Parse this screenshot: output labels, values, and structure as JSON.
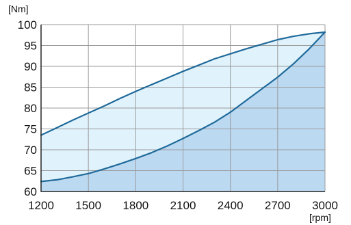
{
  "chart_data": {
    "type": "area",
    "xlabel": "[rpm]",
    "ylabel": "[Nm]",
    "xlim": [
      1200,
      3000
    ],
    "ylim": [
      60,
      100
    ],
    "x_ticks": [
      "1200",
      "1500",
      "1800",
      "2100",
      "2400",
      "2700",
      "3000"
    ],
    "y_ticks": [
      "60",
      "65",
      "70",
      "75",
      "80",
      "85",
      "90",
      "95",
      "100"
    ],
    "grid": true,
    "series": [
      {
        "x": [
          1200,
          1300,
          1400,
          1500,
          1600,
          1700,
          1800,
          1900,
          2000,
          2100,
          2200,
          2300,
          2400,
          2500,
          2600,
          2700,
          2800,
          2900,
          3000
        ],
        "y": [
          73.5,
          75.3,
          77.1,
          78.8,
          80.5,
          82.3,
          84.0,
          85.6,
          87.2,
          88.8,
          90.3,
          91.8,
          93.0,
          94.2,
          95.3,
          96.4,
          97.2,
          97.8,
          98.2
        ],
        "fill_color": "#e0f2fb",
        "line_color": "#1f6a9a"
      },
      {
        "x": [
          1200,
          1300,
          1400,
          1500,
          1600,
          1700,
          1800,
          1900,
          2000,
          2100,
          2200,
          2300,
          2400,
          2500,
          2600,
          2700,
          2800,
          2900,
          3000
        ],
        "y": [
          62.4,
          62.8,
          63.5,
          64.3,
          65.4,
          66.6,
          67.9,
          69.3,
          70.9,
          72.7,
          74.6,
          76.6,
          79.0,
          81.8,
          84.6,
          87.4,
          90.6,
          94.2,
          98.2
        ],
        "fill_color": "#bcd9f2",
        "line_color": "#1f6a9a"
      }
    ]
  }
}
